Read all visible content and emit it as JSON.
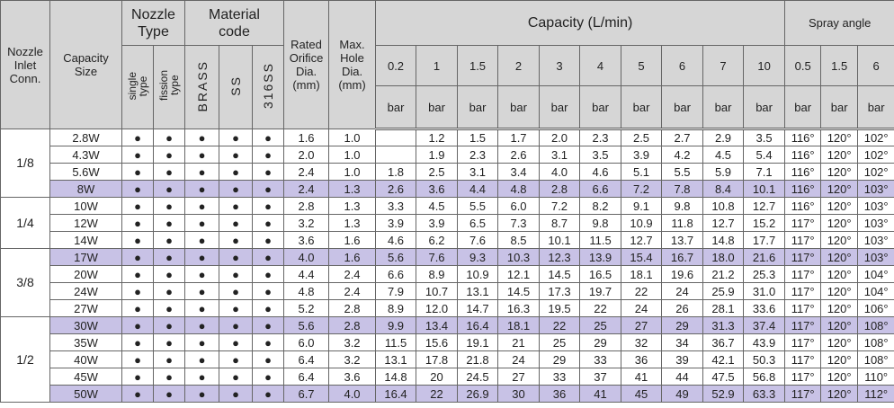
{
  "header": {
    "conn": "Nozzle\nInlet\nConn.",
    "size": "Capacity\nSize",
    "nozzle_type": {
      "title": "Nozzle\nType",
      "items": [
        "single\ntype",
        "fission\ntype"
      ]
    },
    "material": {
      "title": "Material\ncode",
      "items": [
        "BRASS",
        "SS",
        "316SS"
      ]
    },
    "orifice": "Rated\nOrifice\nDia.\n(mm)",
    "hole": "Max.\nHole\nDia.\n(mm)",
    "capacity": {
      "title": "Capacity  (L/min)",
      "pressures": [
        {
          "value": "0.2",
          "unit": "bar"
        },
        {
          "value": "1",
          "unit": "bar"
        },
        {
          "value": "1.5",
          "unit": "bar"
        },
        {
          "value": "2",
          "unit": "bar"
        },
        {
          "value": "3",
          "unit": "bar"
        },
        {
          "value": "4",
          "unit": "bar"
        },
        {
          "value": "5",
          "unit": "bar"
        },
        {
          "value": "6",
          "unit": "bar"
        },
        {
          "value": "7",
          "unit": "bar"
        },
        {
          "value": "10",
          "unit": "bar"
        }
      ]
    },
    "spray": {
      "title": "Spray angle",
      "pressures": [
        {
          "value": "0.5",
          "unit": "bar"
        },
        {
          "value": "1.5",
          "unit": "bar"
        },
        {
          "value": "6",
          "unit": "bar"
        }
      ]
    }
  },
  "highlight_color": "#c8c2e6",
  "groups": [
    {
      "conn": "1/8",
      "rows": [
        {
          "highlight": false,
          "cells": [
            "2.8W",
            "●",
            "●",
            "●",
            "●",
            "●",
            "1.6",
            "1.0",
            null,
            "1.2",
            "1.5",
            "1.7",
            "2.0",
            "2.3",
            "2.5",
            "2.7",
            "2.9",
            "3.5",
            "116°",
            "120°",
            "102°"
          ]
        },
        {
          "highlight": false,
          "cells": [
            "4.3W",
            "●",
            "●",
            "●",
            "●",
            "●",
            "2.0",
            "1.0",
            null,
            "1.9",
            "2.3",
            "2.6",
            "3.1",
            "3.5",
            "3.9",
            "4.2",
            "4.5",
            "5.4",
            "116°",
            "120°",
            "102°"
          ]
        },
        {
          "highlight": false,
          "cells": [
            "5.6W",
            "●",
            "●",
            "●",
            "●",
            "●",
            "2.4",
            "1.0",
            "1.8",
            "2.5",
            "3.1",
            "3.4",
            "4.0",
            "4.6",
            "5.1",
            "5.5",
            "5.9",
            "7.1",
            "116°",
            "120°",
            "102°"
          ]
        },
        {
          "highlight": true,
          "cells": [
            "8W",
            "●",
            "●",
            "●",
            "●",
            "●",
            "2.4",
            "1.3",
            "2.6",
            "3.6",
            "4.4",
            "4.8",
            "2.8",
            "6.6",
            "7.2",
            "7.8",
            "8.4",
            "10.1",
            "116°",
            "120°",
            "103°"
          ]
        }
      ]
    },
    {
      "conn": "1/4",
      "rows": [
        {
          "highlight": false,
          "cells": [
            "10W",
            "●",
            "●",
            "●",
            "●",
            "●",
            "2.8",
            "1.3",
            "3.3",
            "4.5",
            "5.5",
            "6.0",
            "7.2",
            "8.2",
            "9.1",
            "9.8",
            "10.8",
            "12.7",
            "116°",
            "120°",
            "103°"
          ]
        },
        {
          "highlight": false,
          "cells": [
            "12W",
            "●",
            "●",
            "●",
            "●",
            "●",
            "3.2",
            "1.3",
            "3.9",
            "3.9",
            "6.5",
            "7.3",
            "8.7",
            "9.8",
            "10.9",
            "11.8",
            "12.7",
            "15.2",
            "117°",
            "120°",
            "103°"
          ]
        },
        {
          "highlight": false,
          "cells": [
            "14W",
            "●",
            "●",
            "●",
            "●",
            "●",
            "3.6",
            "1.6",
            "4.6",
            "6.2",
            "7.6",
            "8.5",
            "10.1",
            "11.5",
            "12.7",
            "13.7",
            "14.8",
            "17.7",
            "117°",
            "120°",
            "103°"
          ]
        }
      ]
    },
    {
      "conn": "3/8",
      "rows": [
        {
          "highlight": true,
          "cells": [
            "17W",
            "●",
            "●",
            "●",
            "●",
            "●",
            "4.0",
            "1.6",
            "5.6",
            "7.6",
            "9.3",
            "10.3",
            "12.3",
            "13.9",
            "15.4",
            "16.7",
            "18.0",
            "21.6",
            "117°",
            "120°",
            "103°"
          ]
        },
        {
          "highlight": false,
          "cells": [
            "20W",
            "●",
            "●",
            "●",
            "●",
            "●",
            "4.4",
            "2.4",
            "6.6",
            "8.9",
            "10.9",
            "12.1",
            "14.5",
            "16.5",
            "18.1",
            "19.6",
            "21.2",
            "25.3",
            "117°",
            "120°",
            "104°"
          ]
        },
        {
          "highlight": false,
          "cells": [
            "24W",
            "●",
            "●",
            "●",
            "●",
            "●",
            "4.8",
            "2.4",
            "7.9",
            "10.7",
            "13.1",
            "14.5",
            "17.3",
            "19.7",
            "22",
            "24",
            "25.9",
            "31.0",
            "117°",
            "120°",
            "104°"
          ]
        },
        {
          "highlight": false,
          "cells": [
            "27W",
            "●",
            "●",
            "●",
            "●",
            "●",
            "5.2",
            "2.8",
            "8.9",
            "12.0",
            "14.7",
            "16.3",
            "19.5",
            "22",
            "24",
            "26",
            "28.1",
            "33.6",
            "117°",
            "120°",
            "106°"
          ]
        }
      ]
    },
    {
      "conn": "1/2",
      "rows": [
        {
          "highlight": true,
          "cells": [
            "30W",
            "●",
            "●",
            "●",
            "●",
            "●",
            "5.6",
            "2.8",
            "9.9",
            "13.4",
            "16.4",
            "18.1",
            "22",
            "25",
            "27",
            "29",
            "31.3",
            "37.4",
            "117°",
            "120°",
            "108°"
          ]
        },
        {
          "highlight": false,
          "cells": [
            "35W",
            "●",
            "●",
            "●",
            "●",
            "●",
            "6.0",
            "3.2",
            "11.5",
            "15.6",
            "19.1",
            "21",
            "25",
            "29",
            "32",
            "34",
            "36.7",
            "43.9",
            "117°",
            "120°",
            "108°"
          ]
        },
        {
          "highlight": false,
          "cells": [
            "40W",
            "●",
            "●",
            "●",
            "●",
            "●",
            "6.4",
            "3.2",
            "13.1",
            "17.8",
            "21.8",
            "24",
            "29",
            "33",
            "36",
            "39",
            "42.1",
            "50.3",
            "117°",
            "120°",
            "108°"
          ]
        },
        {
          "highlight": false,
          "cells": [
            "45W",
            "●",
            "●",
            "●",
            "●",
            "●",
            "6.4",
            "3.6",
            "14.8",
            "20",
            "24.5",
            "27",
            "33",
            "37",
            "41",
            "44",
            "47.5",
            "56.8",
            "117°",
            "120°",
            "110°"
          ]
        },
        {
          "highlight": true,
          "cells": [
            "50W",
            "●",
            "●",
            "●",
            "●",
            "●",
            "6.7",
            "4.0",
            "16.4",
            "22",
            "26.9",
            "30",
            "36",
            "41",
            "45",
            "49",
            "52.9",
            "63.3",
            "117°",
            "120°",
            "112°"
          ]
        }
      ]
    }
  ]
}
